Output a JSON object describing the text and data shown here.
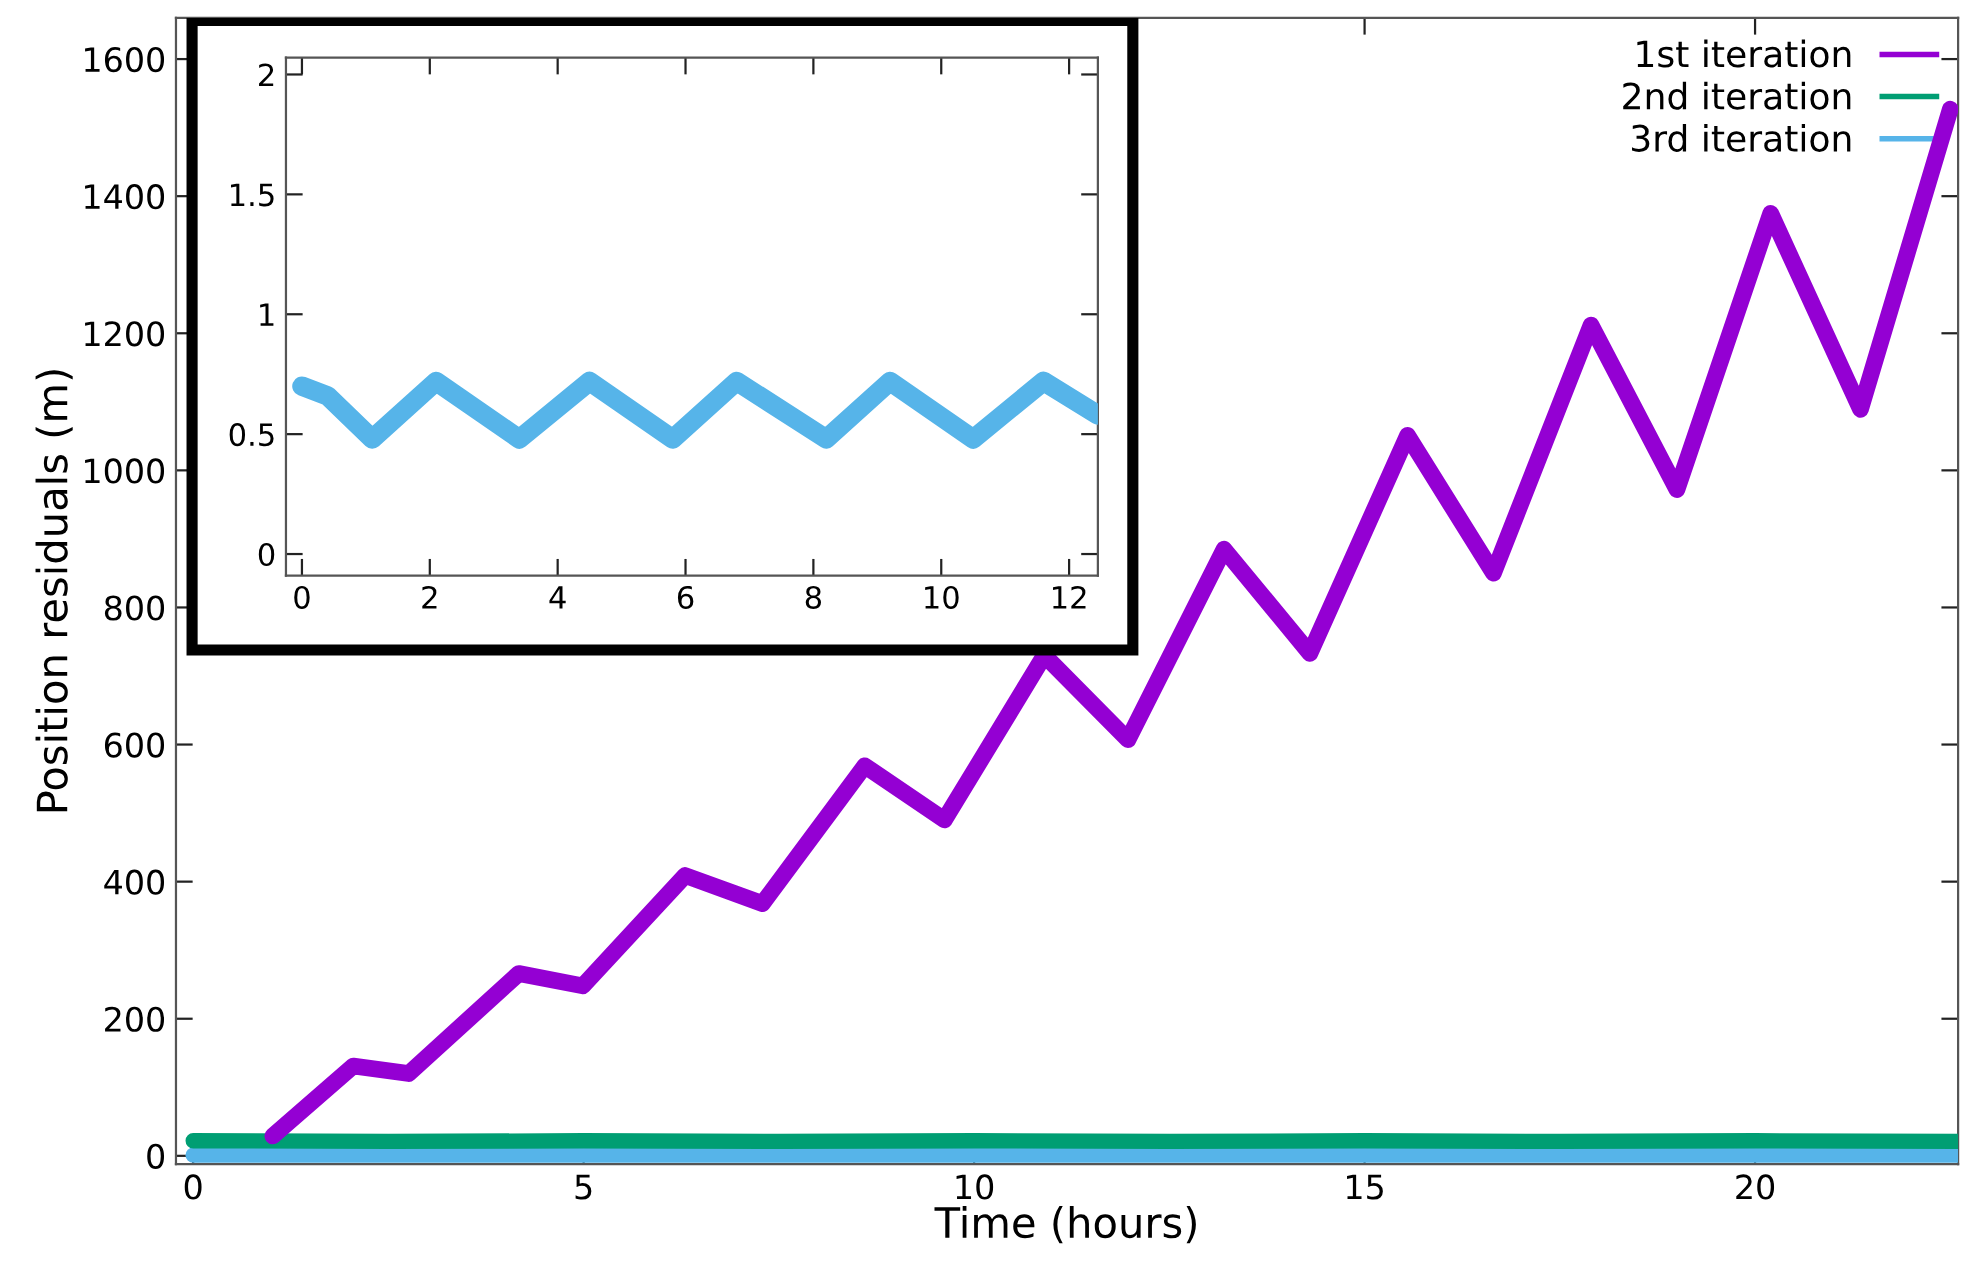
{
  "chart_data": [
    {
      "type": "line",
      "xlabel": "Time (hours)",
      "ylabel": "Position residuals (m)",
      "xlim": [
        -0.22,
        22.6
      ],
      "ylim": [
        -12,
        1660
      ],
      "xticks": [
        0,
        5,
        10,
        15,
        20
      ],
      "yticks": [
        0,
        200,
        400,
        600,
        800,
        1000,
        1200,
        1400,
        1600
      ],
      "grid": false,
      "legend": "top right",
      "series": [
        {
          "name": "1st iteration",
          "color": "#9400d3",
          "x": [
            1.02,
            2.05,
            2.76,
            4.17,
            4.99,
            6.3,
            7.29,
            8.6,
            9.62,
            10.9,
            11.97,
            13.2,
            14.3,
            15.55,
            16.65,
            17.9,
            19.0,
            20.2,
            21.35,
            22.5
          ],
          "values": [
            29,
            131,
            120,
            266,
            248,
            409,
            368,
            569,
            490,
            730,
            607,
            885,
            733,
            1051,
            850,
            1212,
            972,
            1375,
            1089,
            1527
          ]
        },
        {
          "name": "2nd iteration",
          "color": "#009e73",
          "x": [
            0,
            2.5,
            5,
            7.5,
            10,
            12.5,
            15,
            17.5,
            20,
            22.6
          ],
          "values": [
            22,
            21,
            22,
            21,
            22,
            21,
            22,
            21,
            22,
            21
          ]
        },
        {
          "name": "3rd iteration",
          "color": "#56b4e9",
          "x": [
            0,
            22.6
          ],
          "values": [
            1,
            1
          ]
        }
      ]
    },
    {
      "type": "line",
      "xlim": [
        -0.25,
        12.45
      ],
      "ylim": [
        -0.09,
        2.07
      ],
      "xticks": [
        0,
        2,
        4,
        6,
        8,
        10,
        12
      ],
      "yticks": [
        0,
        0.5,
        1,
        1.5,
        2
      ],
      "grid": false,
      "series": [
        {
          "color": "#56b4e9",
          "x": [
            0,
            0.4,
            1.1,
            2.1,
            3.4,
            4.5,
            5.8,
            6.8,
            8.2,
            9.2,
            10.5,
            11.6,
            12.45
          ],
          "values": [
            0.7,
            0.66,
            0.48,
            0.72,
            0.48,
            0.72,
            0.48,
            0.72,
            0.48,
            0.72,
            0.48,
            0.72,
            0.58
          ]
        }
      ]
    }
  ]
}
